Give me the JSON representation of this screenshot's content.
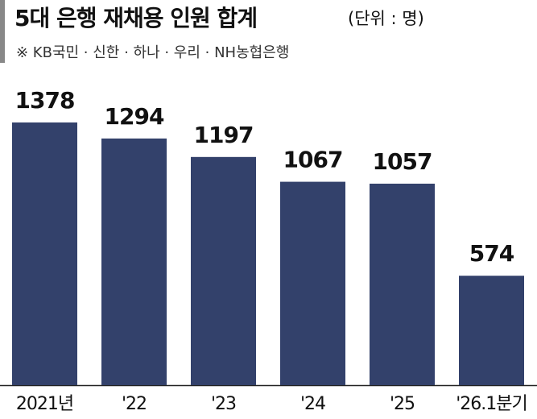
{
  "chart_data": {
    "type": "bar",
    "title": "5대 은행 재채용 인원 합계",
    "unit": "(단위 : 명)",
    "subtitle": "※ KB국민 · 신한 · 하나 · 우리 · NH농협은행",
    "categories": [
      "2021년",
      "'22",
      "'23",
      "'24",
      "'25",
      "'26.1분기"
    ],
    "values": [
      1378,
      1294,
      1197,
      1067,
      1057,
      574
    ],
    "color": "#33416b"
  }
}
